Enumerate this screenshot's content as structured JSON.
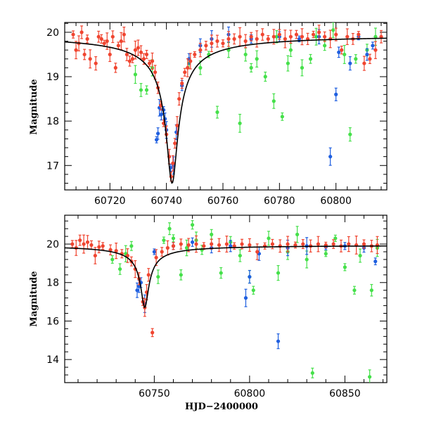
{
  "colors": {
    "blue": "#1f5fe0",
    "green": "#45e04a",
    "red": "#f04530",
    "model": "#000000"
  },
  "chart_data": [
    {
      "type": "scatter",
      "panel": "top",
      "title": "",
      "xlabel": "",
      "ylabel": "Magnitude",
      "xlim": [
        60704,
        60818
      ],
      "ylim": [
        20.22,
        16.45
      ],
      "y_inverted": true,
      "grid": false,
      "xticks": [
        60720,
        60740,
        60760,
        60780,
        60800
      ],
      "yticks": [
        17,
        18,
        19,
        20
      ],
      "series": [
        {
          "color": "blue",
          "points": [
            [
              60736.5,
              17.58
            ],
            [
              60737.0,
              17.72
            ],
            [
              60737.5,
              18.3
            ],
            [
              60738.2,
              18.15
            ],
            [
              60739.0,
              18.25
            ],
            [
              60739.5,
              18.05
            ],
            [
              60740.0,
              17.8
            ],
            [
              60741.5,
              16.95
            ],
            [
              60742.5,
              17.0
            ],
            [
              60743.5,
              17.75
            ],
            [
              60745.5,
              18.8
            ],
            [
              60748,
              19.4
            ],
            [
              60752,
              19.7
            ],
            [
              60756,
              19.85
            ],
            [
              60762,
              19.95
            ],
            [
              60770,
              19.85
            ],
            [
              60780,
              19.9
            ],
            [
              60787,
              19.85
            ],
            [
              60794,
              19.9
            ],
            [
              60798,
              17.2
            ],
            [
              60800,
              18.6
            ],
            [
              60801,
              19.55
            ],
            [
              60805,
              19.3
            ],
            [
              60808,
              19.9
            ],
            [
              60811,
              19.5
            ],
            [
              60813,
              19.7
            ]
          ]
        },
        {
          "color": "green",
          "points": [
            [
              60729,
              19.05
            ],
            [
              60731,
              18.7
            ],
            [
              60733,
              18.7
            ],
            [
              60735,
              19.2
            ],
            [
              60748,
              19.3
            ],
            [
              60752,
              19.2
            ],
            [
              60755,
              19.5
            ],
            [
              60758,
              18.2
            ],
            [
              60762,
              19.6
            ],
            [
              60766,
              17.95
            ],
            [
              60768,
              19.5
            ],
            [
              60770,
              19.2
            ],
            [
              60772,
              19.4
            ],
            [
              60775,
              19.0
            ],
            [
              60778,
              18.45
            ],
            [
              60779,
              19.9
            ],
            [
              60781,
              18.1
            ],
            [
              60783,
              19.3
            ],
            [
              60784,
              19.6
            ],
            [
              60788,
              19.2
            ],
            [
              60791,
              19.4
            ],
            [
              60793,
              19.9
            ],
            [
              60796,
              19.7
            ],
            [
              60799,
              20.05
            ],
            [
              60803,
              19.5
            ],
            [
              60805,
              17.7
            ],
            [
              60807,
              19.4
            ],
            [
              60811,
              19.6
            ],
            [
              60814,
              19.9
            ]
          ]
        },
        {
          "color": "red",
          "points": [
            [
              60707,
              19.95
            ],
            [
              60708,
              19.6
            ],
            [
              60709,
              19.75
            ],
            [
              60710,
              20.0
            ],
            [
              60711,
              19.5
            ],
            [
              60712,
              19.85
            ],
            [
              60713,
              19.4
            ],
            [
              60715,
              19.3
            ],
            [
              60716,
              19.9
            ],
            [
              60717,
              19.85
            ],
            [
              60718,
              19.75
            ],
            [
              60719,
              19.8
            ],
            [
              60720,
              19.5
            ],
            [
              60721,
              19.9
            ],
            [
              60722,
              19.2
            ],
            [
              60723,
              19.7
            ],
            [
              60724,
              19.8
            ],
            [
              60725,
              19.95
            ],
            [
              60726,
              19.5
            ],
            [
              60727,
              19.35
            ],
            [
              60728,
              19.4
            ],
            [
              60729,
              19.6
            ],
            [
              60730,
              19.65
            ],
            [
              60731,
              19.55
            ],
            [
              60732,
              19.4
            ],
            [
              60733,
              19.5
            ],
            [
              60734,
              19.3
            ],
            [
              60735,
              19.35
            ],
            [
              60736,
              19.1
            ],
            [
              60737,
              18.75
            ],
            [
              60738,
              18.35
            ],
            [
              60739,
              17.95
            ],
            [
              60740,
              17.7
            ],
            [
              60741,
              17.2
            ],
            [
              60741.7,
              16.75
            ],
            [
              60742.3,
              17.05
            ],
            [
              60743,
              17.5
            ],
            [
              60743.8,
              17.9
            ],
            [
              60744.5,
              18.5
            ],
            [
              60745.5,
              18.85
            ],
            [
              60746.5,
              19.1
            ],
            [
              60747.5,
              19.2
            ],
            [
              60748.5,
              19.35
            ],
            [
              60750,
              19.5
            ],
            [
              60752,
              19.6
            ],
            [
              60754,
              19.7
            ],
            [
              60756,
              19.75
            ],
            [
              60758,
              19.8
            ],
            [
              60760,
              19.75
            ],
            [
              60762,
              19.85
            ],
            [
              60764,
              19.85
            ],
            [
              60766,
              19.9
            ],
            [
              60768,
              19.8
            ],
            [
              60770,
              19.9
            ],
            [
              60772,
              19.85
            ],
            [
              60774,
              19.95
            ],
            [
              60776,
              19.85
            ],
            [
              60778,
              19.9
            ],
            [
              60780,
              19.95
            ],
            [
              60782,
              19.85
            ],
            [
              60784,
              19.9
            ],
            [
              60786,
              19.95
            ],
            [
              60788,
              19.9
            ],
            [
              60790,
              19.85
            ],
            [
              60792,
              19.95
            ],
            [
              60794,
              20.0
            ],
            [
              60796,
              19.9
            ],
            [
              60798,
              19.85
            ],
            [
              60800,
              19.95
            ],
            [
              60802,
              19.6
            ],
            [
              60804,
              19.9
            ],
            [
              60806,
              19.85
            ],
            [
              60808,
              19.95
            ],
            [
              60810,
              19.3
            ],
            [
              60812,
              19.4
            ],
            [
              60814,
              19.6
            ],
            [
              60816,
              19.9
            ]
          ]
        }
      ],
      "model": "black curve peaking near HJD 60742 at magnitude ~16.6 with baseline ~19.95"
    },
    {
      "type": "scatter",
      "panel": "bottom",
      "title": "",
      "xlabel": "HJD−2400000",
      "ylabel": "Magnitude",
      "xlim": [
        60703,
        60872
      ],
      "ylim": [
        21.5,
        12.8
      ],
      "y_inverted": true,
      "grid": false,
      "xticks": [
        60750,
        60800,
        60850
      ],
      "yticks": [
        14,
        16,
        18,
        20
      ],
      "series": [
        {
          "color": "blue",
          "points": [
            [
              60741,
              17.6
            ],
            [
              60742,
              17.8
            ],
            [
              60743,
              18.0
            ],
            [
              60745,
              16.9
            ],
            [
              60750,
              19.6
            ],
            [
              60760,
              19.9
            ],
            [
              60770,
              20.1
            ],
            [
              60780,
              19.8
            ],
            [
              60790,
              19.9
            ],
            [
              60798,
              17.2
            ],
            [
              60800,
              18.3
            ],
            [
              60805,
              19.5
            ],
            [
              60815,
              14.95
            ],
            [
              60820,
              19.8
            ],
            [
              60830,
              19.9
            ],
            [
              60840,
              19.85
            ],
            [
              60850,
              19.9
            ],
            [
              60860,
              19.8
            ],
            [
              60866,
              19.1
            ]
          ]
        },
        {
          "color": "green",
          "points": [
            [
              60728,
              19.2
            ],
            [
              60732,
              18.7
            ],
            [
              60735,
              19.5
            ],
            [
              60738,
              19.9
            ],
            [
              60752,
              18.3
            ],
            [
              60755,
              20.2
            ],
            [
              60758,
              20.8
            ],
            [
              60760,
              20.3
            ],
            [
              60764,
              18.4
            ],
            [
              60767,
              19.8
            ],
            [
              60770,
              21.0
            ],
            [
              60772,
              20.2
            ],
            [
              60775,
              19.7
            ],
            [
              60780,
              20.5
            ],
            [
              60785,
              18.5
            ],
            [
              60790,
              20.1
            ],
            [
              60795,
              19.4
            ],
            [
              60800,
              18.3
            ],
            [
              60802,
              17.6
            ],
            [
              60810,
              20.3
            ],
            [
              60815,
              18.5
            ],
            [
              60820,
              19.6
            ],
            [
              60825,
              20.5
            ],
            [
              60830,
              19.2
            ],
            [
              60833,
              13.3
            ],
            [
              60840,
              19.5
            ],
            [
              60845,
              20.3
            ],
            [
              60850,
              18.8
            ],
            [
              60855,
              17.6
            ],
            [
              60858,
              19.4
            ],
            [
              60863,
              13.1
            ],
            [
              60864,
              17.6
            ],
            [
              60867,
              19.8
            ]
          ]
        },
        {
          "color": "red",
          "points": [
            [
              60707,
              20.0
            ],
            [
              60709,
              19.8
            ],
            [
              60711,
              20.2
            ],
            [
              60713,
              20.0
            ],
            [
              60715,
              20.1
            ],
            [
              60717,
              19.95
            ],
            [
              60719,
              19.4
            ],
            [
              60721,
              19.85
            ],
            [
              60723,
              19.9
            ],
            [
              60727,
              19.7
            ],
            [
              60730,
              19.65
            ],
            [
              60733,
              19.5
            ],
            [
              60736,
              19.4
            ],
            [
              60738,
              19.1
            ],
            [
              60740,
              18.7
            ],
            [
              60742,
              18.2
            ],
            [
              60744,
              17.0
            ],
            [
              60745,
              16.7
            ],
            [
              60746,
              17.5
            ],
            [
              60747,
              18.4
            ],
            [
              60749,
              15.4
            ],
            [
              60751,
              19.3
            ],
            [
              60754,
              19.6
            ],
            [
              60757,
              19.8
            ],
            [
              60760,
              19.9
            ],
            [
              60764,
              20.0
            ],
            [
              60768,
              19.95
            ],
            [
              60772,
              20.0
            ],
            [
              60776,
              19.9
            ],
            [
              60780,
              20.0
            ],
            [
              60784,
              19.95
            ],
            [
              60788,
              20.0
            ],
            [
              60792,
              19.9
            ],
            [
              60796,
              20.0
            ],
            [
              60800,
              19.95
            ],
            [
              60804,
              19.6
            ],
            [
              60808,
              19.9
            ],
            [
              60812,
              20.0
            ],
            [
              60816,
              19.9
            ],
            [
              60820,
              20.0
            ],
            [
              60824,
              19.95
            ],
            [
              60828,
              20.0
            ],
            [
              60832,
              19.9
            ],
            [
              60836,
              20.0
            ],
            [
              60840,
              19.95
            ],
            [
              60844,
              20.0
            ],
            [
              60848,
              19.9
            ],
            [
              60852,
              20.0
            ],
            [
              60856,
              19.95
            ],
            [
              60860,
              20.0
            ],
            [
              60864,
              19.9
            ],
            [
              60867,
              19.95
            ]
          ]
        }
      ],
      "model": "black curve peaking near HJD 60745 at magnitude ~16.7 with baseline ~19.95"
    }
  ]
}
